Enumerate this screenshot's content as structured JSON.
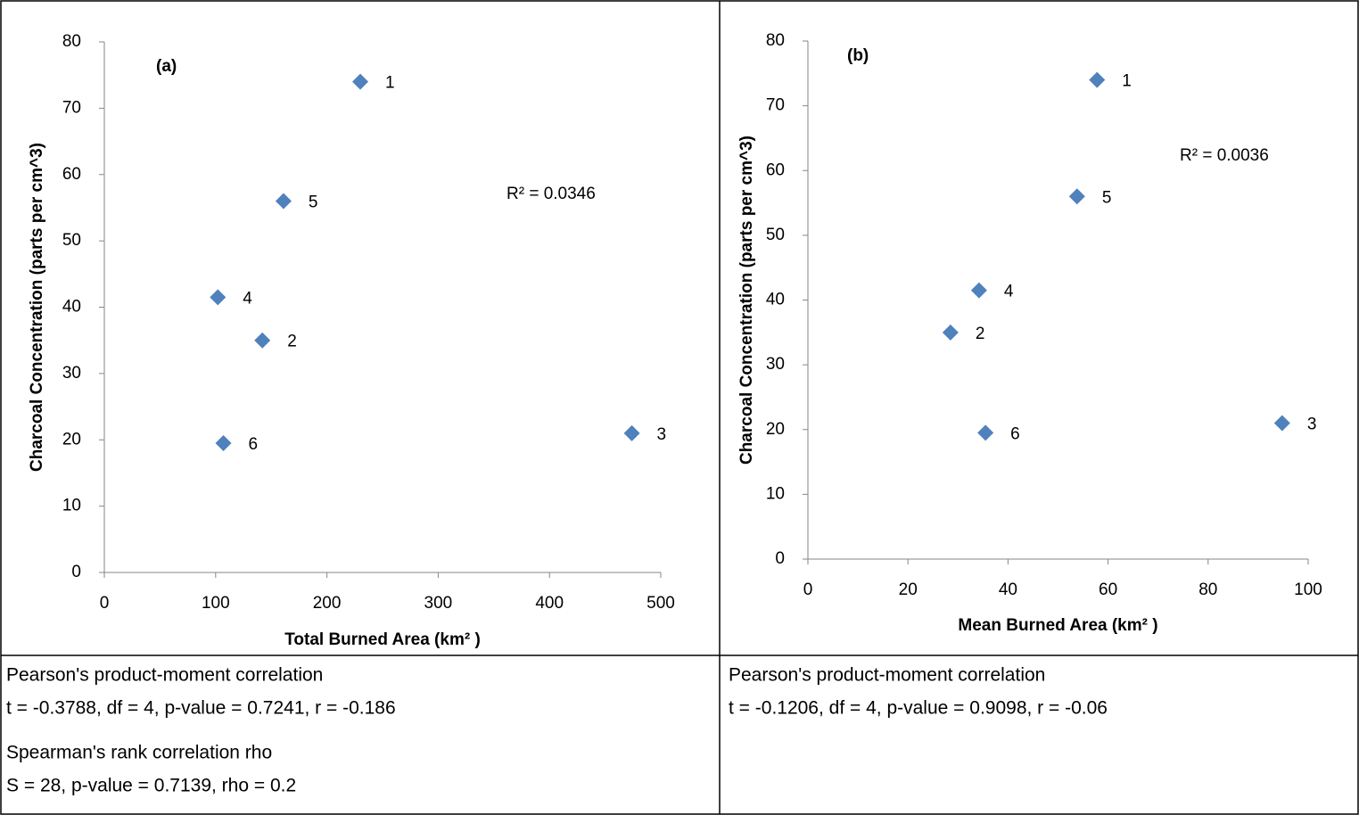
{
  "chart_data": [
    {
      "type": "scatter",
      "annotation": "(a)",
      "r_squared_label": "R² = 0.0346",
      "x_label": "Total Burned Area (km² )",
      "y_label": "Charcoal Concentration (parts per cm^3)",
      "color": "#4f81bd",
      "x": [
        230,
        142,
        474,
        102,
        161,
        107
      ],
      "values": [
        74,
        35,
        21,
        41.5,
        56,
        19.5
      ],
      "point_labels": [
        "1",
        "2",
        "3",
        "4",
        "5",
        "6"
      ],
      "xlim": [
        0,
        500
      ],
      "xticks": [
        0,
        100,
        200,
        300,
        400,
        500
      ],
      "ylim": [
        0,
        80
      ],
      "yticks": [
        0,
        10,
        20,
        30,
        40,
        50,
        60,
        70,
        80
      ],
      "grid": false
    },
    {
      "type": "scatter",
      "annotation": "(b)",
      "r_squared_label": "R² = 0.0036",
      "x_label": "Mean Burned Area (km² )",
      "y_label": "Charcoal Concentration (parts per cm^3)",
      "color": "#4f81bd",
      "x": [
        57.8,
        28.5,
        94.8,
        34.2,
        53.8,
        35.5
      ],
      "values": [
        74,
        35,
        21,
        41.5,
        56,
        19.5
      ],
      "point_labels": [
        "1",
        "2",
        "3",
        "4",
        "5",
        "6"
      ],
      "xlim": [
        0,
        100
      ],
      "xticks": [
        0,
        20,
        40,
        60,
        80,
        100
      ],
      "ylim": [
        0,
        80
      ],
      "yticks": [
        0,
        10,
        20,
        30,
        40,
        50,
        60,
        70,
        80
      ],
      "grid": false
    }
  ],
  "text_cells": [
    [
      [
        "Pearson's product-moment correlation",
        "t = -0.3788, df = 4, p-value = 0.7241, r = -0.186"
      ],
      [
        "Spearman's rank correlation rho",
        "S = 28, p-value = 0.7139, rho = 0.2"
      ]
    ],
    [
      [
        "Pearson's product-moment correlation",
        "t = -0.1206, df = 4, p-value = 0.9098, r = -0.06"
      ]
    ]
  ]
}
